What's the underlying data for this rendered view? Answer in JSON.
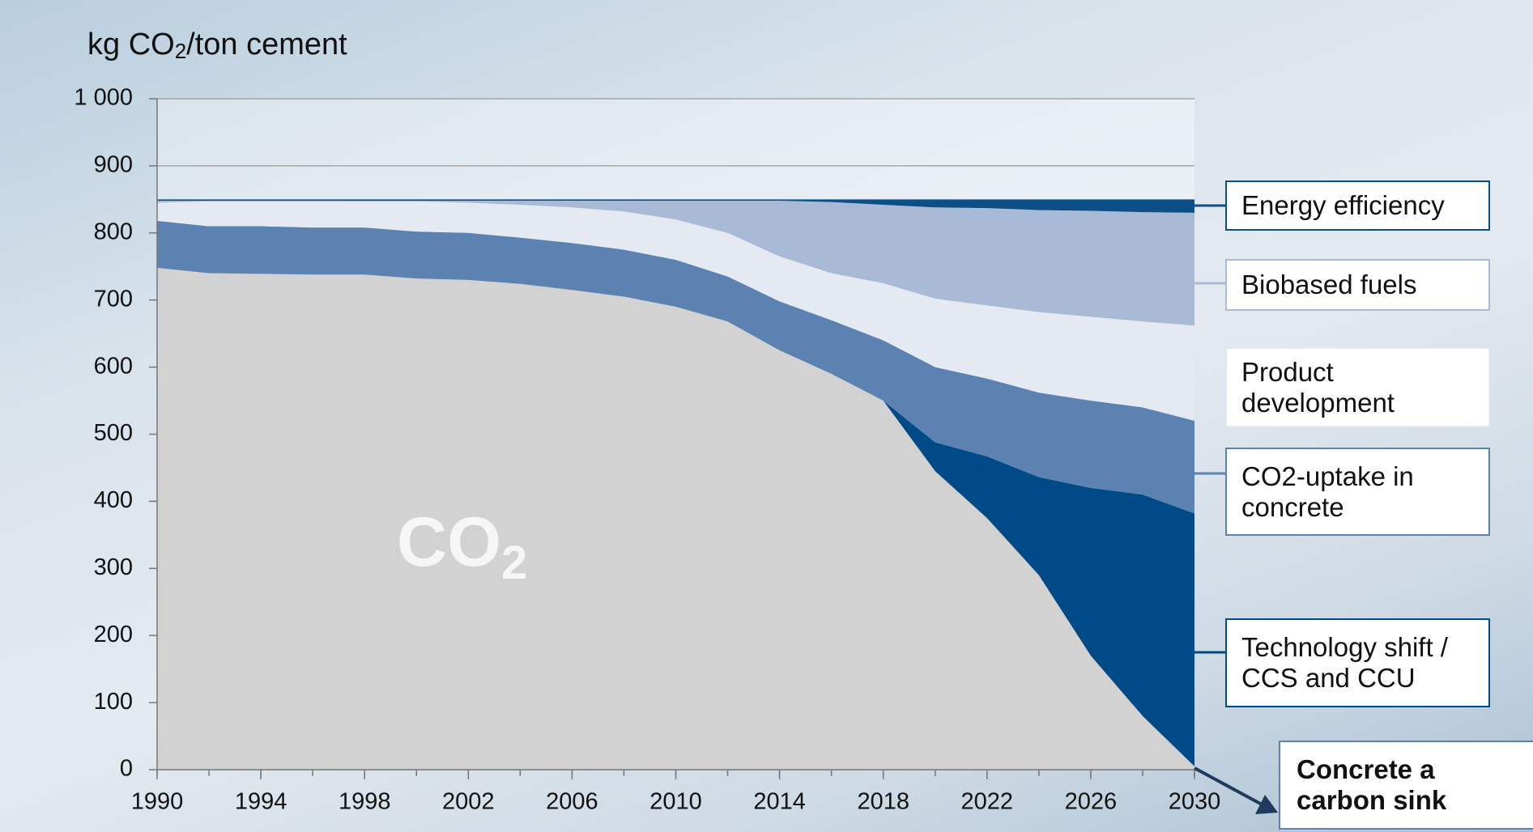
{
  "chart_data": {
    "type": "stacked_area",
    "ylabel": [
      "kg CO",
      "2",
      "/ton cement"
    ],
    "annotation": [
      "CO",
      "2"
    ],
    "callout": "Concrete a carbon sink",
    "x": [
      1990,
      1992,
      1994,
      1996,
      1998,
      2000,
      2002,
      2004,
      2006,
      2008,
      2010,
      2012,
      2014,
      2016,
      2018,
      2020,
      2022,
      2024,
      2026,
      2028,
      2030
    ],
    "xlim": [
      1990,
      2030
    ],
    "xticks": [
      1990,
      1994,
      1998,
      2002,
      2006,
      2010,
      2014,
      2018,
      2022,
      2026,
      2030
    ],
    "ylim": [
      0,
      1000
    ],
    "yticks": [
      0,
      100,
      200,
      300,
      400,
      500,
      600,
      700,
      800,
      900,
      {
        "value": 1000,
        "label": "1 000"
      }
    ],
    "grid": true,
    "series": [
      {
        "color": "#d2d2d2",
        "values": [
          748,
          740,
          739,
          738,
          738,
          732,
          730,
          724,
          715,
          705,
          690,
          668,
          625,
          590,
          550,
          445,
          375,
          290,
          170,
          80,
          5
        ]
      },
      {
        "name": "Technology shift / CCS and CCU",
        "color": "#004b87",
        "values": [
          0,
          0,
          0,
          0,
          0,
          0,
          0,
          0,
          0,
          0,
          0,
          0,
          0,
          0,
          0,
          43,
          92,
          146,
          250,
          330,
          377
        ]
      },
      {
        "name": "CO2-uptake in concrete",
        "color": "#5b82b0",
        "values": [
          70,
          70,
          71,
          70,
          70,
          70,
          70,
          69,
          70,
          70,
          70,
          67,
          73,
          80,
          90,
          112,
          116,
          126,
          130,
          130,
          138
        ]
      },
      {
        "name": "Product development",
        "color": "#e4e9f2",
        "values": [
          27,
          37,
          37,
          39,
          39,
          45,
          45,
          49,
          53,
          57,
          60,
          65,
          67,
          70,
          85,
          102,
          109,
          120,
          125,
          128,
          142
        ]
      },
      {
        "name": "Biobased fuels",
        "color": "#a9bad6",
        "values": [
          3,
          1,
          1,
          1,
          1,
          1,
          3,
          6,
          10,
          16,
          28,
          48,
          83,
          106,
          117,
          136,
          145,
          152,
          158,
          163,
          168
        ]
      },
      {
        "name": "Energy efficiency",
        "color": "#0b4f86",
        "values": [
          2,
          2,
          2,
          2,
          2,
          2,
          2,
          2,
          2,
          2,
          2,
          2,
          2,
          4,
          8,
          12,
          13,
          16,
          17,
          19,
          20
        ]
      }
    ]
  }
}
